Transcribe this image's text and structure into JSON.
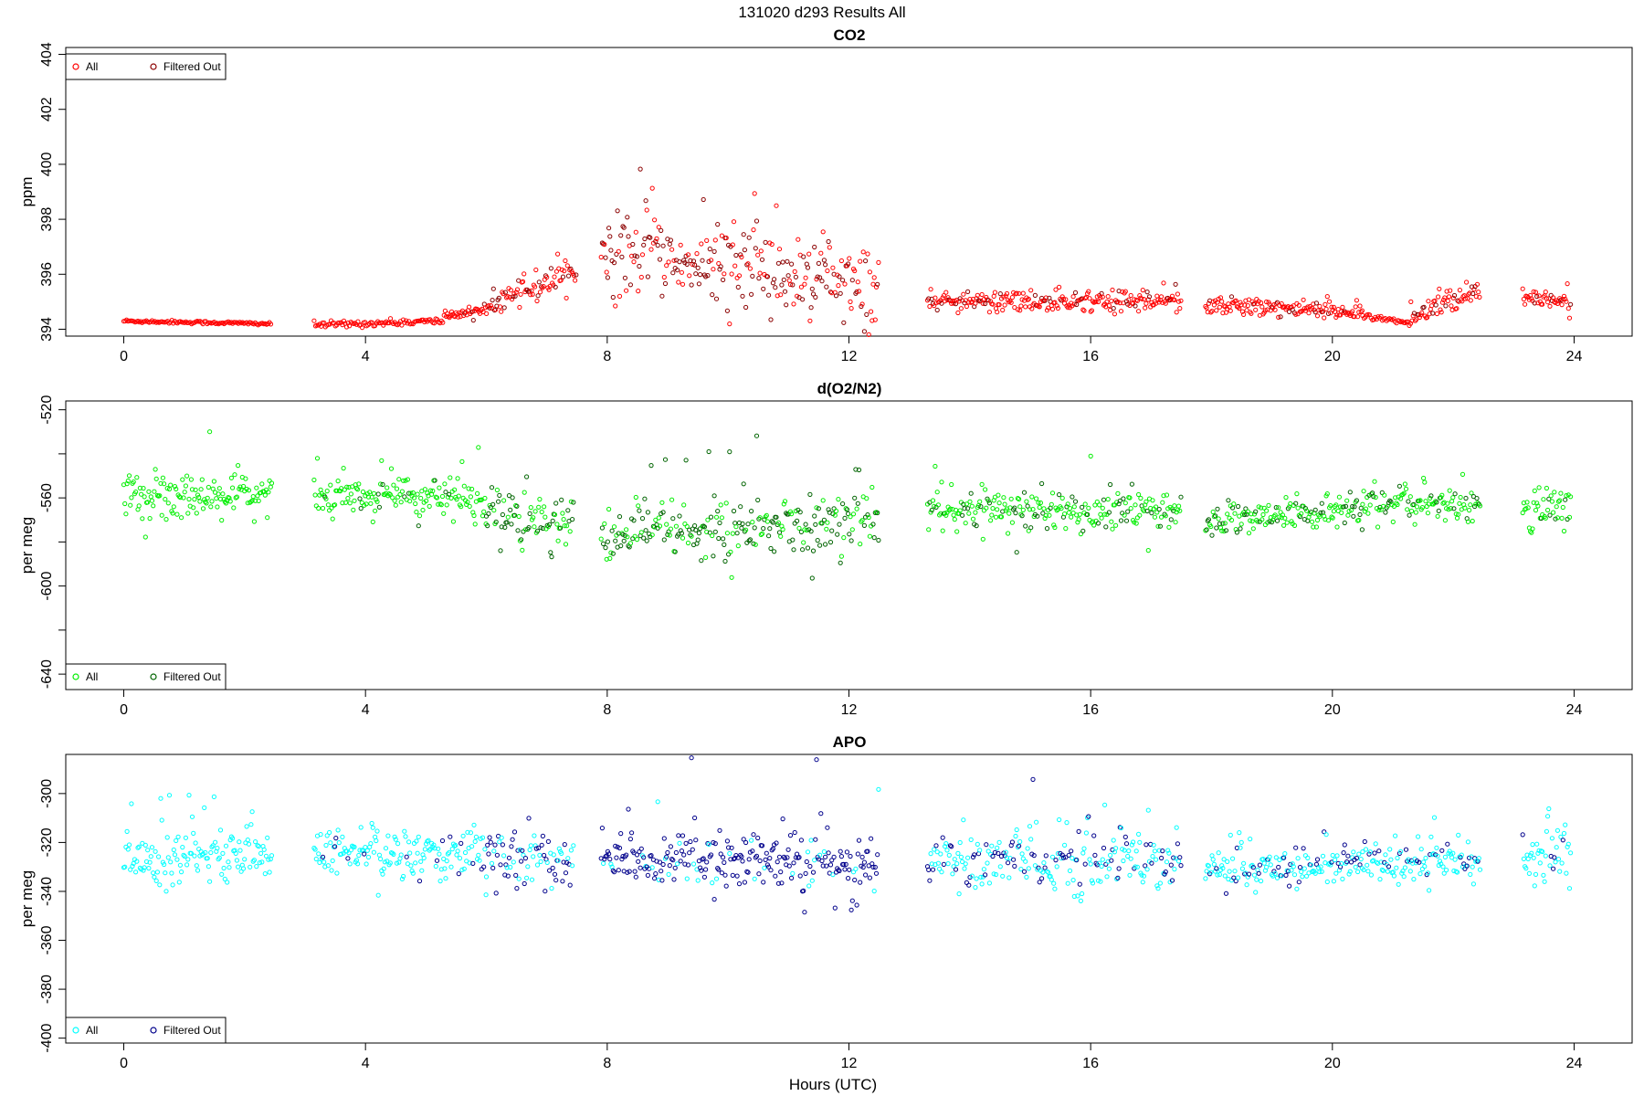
{
  "figure": {
    "title": "131020   d293   Results All",
    "xlabel": "Hours (UTC)"
  },
  "chart_data": [
    {
      "type": "scatter",
      "title": "CO2",
      "xlabel": "",
      "ylabel": "ppm",
      "xlim": [
        -0.96,
        24.96
      ],
      "ylim": [
        393.75,
        404.25
      ],
      "xticks": [
        0,
        4,
        8,
        12,
        16,
        20,
        24
      ],
      "yticks": [
        394,
        396,
        398,
        400,
        402,
        404
      ],
      "legend": {
        "placement": "top-left",
        "entries": [
          "All",
          "Filtered Out"
        ]
      },
      "colors": {
        "all": "#ff0000",
        "filtered": "#8b0000"
      },
      "segments": [
        {
          "x0": 0.0,
          "x1": 2.45,
          "base": 394.3,
          "trend": -0.1,
          "noise": 0.03,
          "spike": 0.0,
          "filtered": 0.0
        },
        {
          "x0": 3.15,
          "x1": 5.3,
          "base": 394.15,
          "trend": 0.15,
          "noise": 0.06,
          "spike": 0.1,
          "filtered": 0.0
        },
        {
          "x0": 5.3,
          "x1": 6.1,
          "base": 394.4,
          "trend": 0.4,
          "noise": 0.15,
          "spike": 0.3,
          "filtered": 0.1
        },
        {
          "x0": 6.1,
          "x1": 7.5,
          "base": 394.9,
          "trend": 1.2,
          "noise": 0.4,
          "spike": 1.5,
          "filtered": 0.3
        },
        {
          "x0": 7.9,
          "x1": 12.5,
          "base": 396.8,
          "trend": -1.2,
          "noise": 1.2,
          "spike": 3.5,
          "filtered": 0.6
        },
        {
          "x0": 13.3,
          "x1": 17.5,
          "base": 395.0,
          "trend": 0.0,
          "noise": 0.3,
          "spike": 1.0,
          "filtered": 0.15
        },
        {
          "x0": 17.9,
          "x1": 20.5,
          "base": 394.9,
          "trend": -0.3,
          "noise": 0.25,
          "spike": 0.8,
          "filtered": 0.15
        },
        {
          "x0": 20.5,
          "x1": 21.3,
          "base": 394.5,
          "trend": -0.3,
          "noise": 0.04,
          "spike": 0.0,
          "filtered": 0.0
        },
        {
          "x0": 21.3,
          "x1": 22.45,
          "base": 394.4,
          "trend": 1.0,
          "noise": 0.3,
          "spike": 1.5,
          "filtered": 0.2
        },
        {
          "x0": 23.15,
          "x1": 23.95,
          "base": 395.0,
          "trend": 0.0,
          "noise": 0.35,
          "spike": 0.6,
          "filtered": 0.1
        }
      ]
    },
    {
      "type": "scatter",
      "title": "d(O2/N2)",
      "xlabel": "",
      "ylabel": "per meg",
      "xlim": [
        -0.96,
        24.96
      ],
      "ylim": [
        -647,
        -516
      ],
      "xticks": [
        0,
        4,
        8,
        12,
        16,
        20,
        24
      ],
      "yticks": [
        -520,
        -540,
        -560,
        -580,
        -600,
        -620,
        -640
      ],
      "ytick_labels_shown": [
        -520,
        -560,
        -600,
        -640
      ],
      "legend": {
        "placement": "bottom-left",
        "entries": [
          "All",
          "Filtered Out"
        ]
      },
      "colors": {
        "all": "#00ee00",
        "filtered": "#006400"
      },
      "segments": [
        {
          "x0": 0.0,
          "x1": 2.45,
          "base": -560,
          "trend": 2,
          "noise": 8,
          "spike": 38,
          "filtered": 0.0
        },
        {
          "x0": 3.15,
          "x1": 6.0,
          "base": -558,
          "trend": -3,
          "noise": 8,
          "spike": 30,
          "filtered": 0.05
        },
        {
          "x0": 6.0,
          "x1": 7.45,
          "base": -566,
          "trend": -6,
          "noise": 9,
          "spike": 25,
          "filtered": 0.5
        },
        {
          "x0": 7.9,
          "x1": 12.5,
          "base": -578,
          "trend": 8,
          "noise": 10,
          "spike": 62,
          "filtered": 0.65
        },
        {
          "x0": 13.3,
          "x1": 17.5,
          "base": -566,
          "trend": 0,
          "noise": 8,
          "spike": 40,
          "filtered": 0.25
        },
        {
          "x0": 17.9,
          "x1": 20.5,
          "base": -570,
          "trend": 4,
          "noise": 5,
          "spike": 15,
          "filtered": 0.35
        },
        {
          "x0": 20.5,
          "x1": 22.45,
          "base": -563,
          "trend": 0,
          "noise": 6,
          "spike": 25,
          "filtered": 0.2
        },
        {
          "x0": 23.15,
          "x1": 23.95,
          "base": -566,
          "trend": 4,
          "noise": 9,
          "spike": 30,
          "filtered": 0.1
        }
      ]
    },
    {
      "type": "scatter",
      "title": "APO",
      "xlabel": "Hours (UTC)",
      "ylabel": "per meg",
      "xlim": [
        -0.96,
        24.96
      ],
      "ylim": [
        -402,
        -284
      ],
      "xticks": [
        0,
        4,
        8,
        12,
        16,
        20,
        24
      ],
      "yticks": [
        -300,
        -320,
        -340,
        -360,
        -380,
        -400
      ],
      "legend": {
        "placement": "bottom-left",
        "entries": [
          "All",
          "Filtered Out"
        ]
      },
      "colors": {
        "all": "#00ffff",
        "filtered": "#00008b"
      },
      "segments": [
        {
          "x0": 0.0,
          "x1": 2.45,
          "base": -327,
          "trend": 2,
          "noise": 9,
          "spike": 38,
          "filtered": 0.0
        },
        {
          "x0": 3.15,
          "x1": 6.0,
          "base": -325,
          "trend": 0,
          "noise": 9,
          "spike": 32,
          "filtered": 0.08
        },
        {
          "x0": 6.0,
          "x1": 7.45,
          "base": -325,
          "trend": -2,
          "noise": 10,
          "spike": 30,
          "filtered": 0.55
        },
        {
          "x0": 7.9,
          "x1": 12.5,
          "base": -327,
          "trend": -2,
          "noise": 9,
          "spike": 60,
          "filtered": 0.85
        },
        {
          "x0": 13.3,
          "x1": 17.5,
          "base": -328,
          "trend": 0,
          "noise": 10,
          "spike": 40,
          "filtered": 0.35
        },
        {
          "x0": 17.9,
          "x1": 20.5,
          "base": -333,
          "trend": 4,
          "noise": 6,
          "spike": 20,
          "filtered": 0.25
        },
        {
          "x0": 20.5,
          "x1": 22.45,
          "base": -328,
          "trend": 0,
          "noise": 7,
          "spike": 25,
          "filtered": 0.2
        },
        {
          "x0": 23.15,
          "x1": 23.95,
          "base": -327,
          "trend": 2,
          "noise": 9,
          "spike": 30,
          "filtered": 0.1
        }
      ]
    }
  ]
}
